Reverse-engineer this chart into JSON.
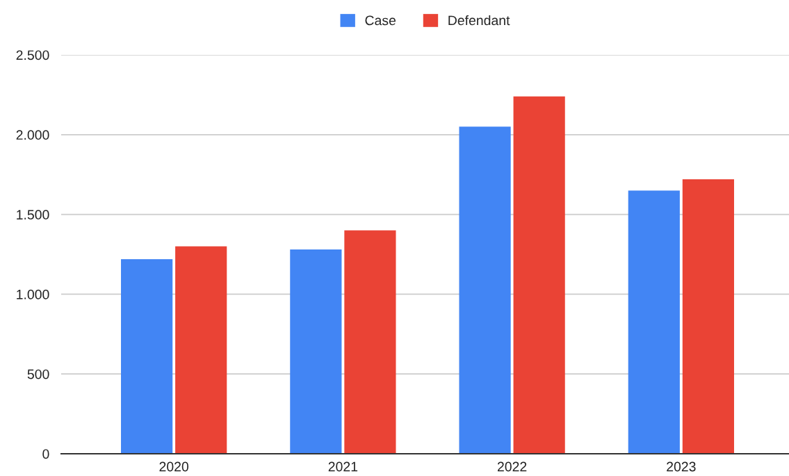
{
  "chart_data": {
    "type": "bar",
    "categories": [
      "2020",
      "2021",
      "2022",
      "2023"
    ],
    "series": [
      {
        "name": "Case",
        "color": "#4285f4",
        "values": [
          1220,
          1280,
          2050,
          1650
        ]
      },
      {
        "name": "Defendant",
        "color": "#ea4335",
        "values": [
          1300,
          1400,
          2240,
          1720
        ]
      }
    ],
    "ylim": [
      0,
      2500
    ],
    "yticks": [
      0,
      500,
      {
        "value": 1000,
        "label": "1.000"
      },
      {
        "value": 1500,
        "label": "1.500"
      },
      {
        "value": 2000,
        "label": "2.000"
      },
      {
        "value": 2500,
        "label": "2.500"
      }
    ],
    "grid": "y",
    "legend": "top"
  }
}
